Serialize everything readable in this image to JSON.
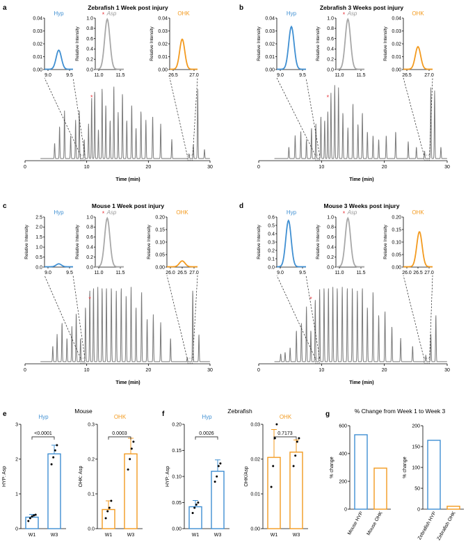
{
  "colors": {
    "hyp": "#3f8fd2",
    "asp": "#a8a8a8",
    "ohk": "#f39a1e",
    "star": "#e8343a",
    "trace": "#7a7a7a"
  },
  "panels": {
    "a": {
      "letter": "a",
      "title": "Zebrafish 1 Week post injury",
      "xlabel": "Time (min)"
    },
    "b": {
      "letter": "b",
      "title": "Zebrafish 3 Weeks  post injury",
      "xlabel": "Time (min)"
    },
    "c": {
      "letter": "c",
      "title": "Mouse 1 Week post injury",
      "xlabel": "Time (min)"
    },
    "d": {
      "letter": "d",
      "title": "Mouse 3 Weeks  post injury",
      "xlabel": "Time (min)"
    },
    "e": {
      "letter": "e",
      "title": "Mouse"
    },
    "f": {
      "letter": "f",
      "title": "Zebrafish"
    },
    "g": {
      "letter": "g",
      "title": "% Change from Week 1 to Week 3"
    }
  },
  "chart_data": [
    {
      "panel": "a",
      "type": "line",
      "xlabel": "Time (min)",
      "xlim": [
        0,
        30
      ],
      "xticks": [
        0,
        10,
        20,
        30
      ],
      "peaks": [
        [
          4.8,
          0.2
        ],
        [
          5.6,
          0.42
        ],
        [
          6.4,
          0.62
        ],
        [
          7.4,
          0.3
        ],
        [
          8.2,
          0.5
        ],
        [
          8.8,
          0.62
        ],
        [
          9.6,
          0.25
        ],
        [
          10.3,
          0.45
        ],
        [
          10.8,
          0.8
        ],
        [
          11.3,
          0.88
        ],
        [
          11.9,
          0.38
        ],
        [
          12.5,
          0.92
        ],
        [
          13.1,
          0.7
        ],
        [
          13.8,
          0.5
        ],
        [
          14.4,
          0.95
        ],
        [
          15.1,
          0.6
        ],
        [
          15.8,
          0.85
        ],
        [
          16.5,
          0.5
        ],
        [
          17.3,
          0.7
        ],
        [
          18.0,
          0.4
        ],
        [
          18.8,
          0.62
        ],
        [
          19.6,
          0.5
        ],
        [
          20.7,
          0.55
        ],
        [
          22.0,
          0.45
        ],
        [
          23.8,
          0.25
        ],
        [
          26.6,
          0.06
        ],
        [
          27.3,
          0.18
        ],
        [
          28.0,
          0.9
        ],
        [
          29.1,
          0.12
        ]
      ],
      "star_rt": 10.8,
      "insets": [
        {
          "label": "Hyp",
          "xticks": [
            "9.0",
            "9.5"
          ],
          "yticks": [
            "0.00",
            "0.01",
            "0.02",
            "0.03",
            "0.04"
          ],
          "ylabel": "",
          "peak_x": 0.5,
          "peak_h": 0.38
        },
        {
          "label": "Asp",
          "star": "*",
          "xticks": [
            "11.0",
            "11.5"
          ],
          "yticks": [
            "0.0",
            "0.2",
            "0.4",
            "0.6",
            "0.8",
            "1.0"
          ],
          "ylabel": "Relative Intensity",
          "peak_x": 0.42,
          "peak_h": 1.0
        },
        {
          "label": "OHK",
          "xticks": [
            "26.5",
            "27.0"
          ],
          "yticks": [
            "0.00",
            "0.01",
            "0.02",
            "0.03",
            "0.04"
          ],
          "ylabel": "Relative Intensity",
          "peak_x": 0.45,
          "peak_h": 0.6
        }
      ]
    },
    {
      "panel": "b",
      "type": "line",
      "xlabel": "Time (min)",
      "xlim": [
        0,
        30
      ],
      "xticks": [
        0,
        10,
        20,
        30
      ],
      "peaks": [
        [
          4.8,
          0.15
        ],
        [
          5.8,
          0.3
        ],
        [
          6.7,
          0.35
        ],
        [
          7.6,
          0.25
        ],
        [
          8.4,
          0.4
        ],
        [
          9.1,
          0.45
        ],
        [
          9.9,
          0.55
        ],
        [
          10.5,
          0.5
        ],
        [
          11.0,
          0.62
        ],
        [
          11.5,
          0.85
        ],
        [
          12.1,
          0.95
        ],
        [
          12.7,
          0.92
        ],
        [
          13.4,
          0.6
        ],
        [
          14.2,
          0.4
        ],
        [
          15.0,
          0.72
        ],
        [
          15.8,
          0.45
        ],
        [
          16.5,
          0.6
        ],
        [
          17.3,
          0.35
        ],
        [
          18.2,
          0.3
        ],
        [
          19.1,
          0.25
        ],
        [
          20.3,
          0.3
        ],
        [
          21.8,
          0.35
        ],
        [
          23.8,
          0.22
        ],
        [
          25.1,
          0.15
        ],
        [
          26.4,
          0.1
        ],
        [
          27.4,
          0.92
        ],
        [
          28.0,
          0.88
        ],
        [
          29.0,
          0.15
        ]
      ],
      "star_rt": 11.0,
      "insets": [
        {
          "label": "Hyp",
          "xticks": [
            "9.0",
            "9.5"
          ],
          "yticks": [
            "0.00",
            "0.01",
            "0.02",
            "0.03",
            "0.04"
          ],
          "ylabel": "Relative Intensity",
          "peak_x": 0.5,
          "peak_h": 0.85
        },
        {
          "label": "Asp",
          "star": "*",
          "xticks": [
            "11.0",
            "11.5"
          ],
          "yticks": [
            "0.0",
            "0.2",
            "0.4",
            "0.6",
            "0.8",
            "1.0"
          ],
          "ylabel": "Relative Intensity",
          "peak_x": 0.42,
          "peak_h": 1.0
        },
        {
          "label": "OHK",
          "xticks": [
            "26.5",
            "27.0"
          ],
          "yticks": [
            "0.00",
            "0.01",
            "0.02",
            "0.03",
            "0.04"
          ],
          "ylabel": "Relative Intensity",
          "peak_x": 0.5,
          "peak_h": 0.45
        }
      ]
    },
    {
      "panel": "c",
      "type": "line",
      "xlabel": "Time (min)",
      "xlim": [
        0,
        30
      ],
      "xticks": [
        0,
        10,
        20,
        30
      ],
      "peaks": [
        [
          4.5,
          0.2
        ],
        [
          5.2,
          0.35
        ],
        [
          6.0,
          0.5
        ],
        [
          6.8,
          0.3
        ],
        [
          7.6,
          0.45
        ],
        [
          8.3,
          0.62
        ],
        [
          9.0,
          0.3
        ],
        [
          9.8,
          0.7
        ],
        [
          10.5,
          0.92
        ],
        [
          11.1,
          0.95
        ],
        [
          11.8,
          0.95
        ],
        [
          12.5,
          0.95
        ],
        [
          13.2,
          0.95
        ],
        [
          14.0,
          0.95
        ],
        [
          14.8,
          0.9
        ],
        [
          15.6,
          0.95
        ],
        [
          16.4,
          0.85
        ],
        [
          17.2,
          0.95
        ],
        [
          18.0,
          0.7
        ],
        [
          18.9,
          0.9
        ],
        [
          19.8,
          0.55
        ],
        [
          20.8,
          0.6
        ],
        [
          22.0,
          0.5
        ],
        [
          23.6,
          0.3
        ],
        [
          26.3,
          0.05
        ],
        [
          27.2,
          0.92
        ],
        [
          28.2,
          0.35
        ]
      ],
      "star_rt": 10.5,
      "insets": [
        {
          "label": "Hyp",
          "xticks": [
            "9.0",
            "9.5"
          ],
          "yticks": [
            "0.0",
            "0.5",
            "1.0",
            "1.5",
            "2.0",
            "2.5"
          ],
          "ylabel": "Relative Intensity",
          "peak_x": 0.5,
          "peak_h": 0.06
        },
        {
          "label": "Asp",
          "star": "*",
          "xticks": [
            "11.0",
            "11.5"
          ],
          "yticks": [
            "0.0",
            "0.2",
            "0.4",
            "0.6",
            "0.8",
            "1.0"
          ],
          "ylabel": "Relative Intensity",
          "peak_x": 0.42,
          "peak_h": 1.0
        },
        {
          "label": "OHK",
          "xticks": [
            "26.0",
            "26.5",
            "27.0"
          ],
          "yticks": [
            "0.00",
            "0.05",
            "0.10",
            "0.15",
            "0.20"
          ],
          "ylabel": "Relative Intensity",
          "peak_x": 0.5,
          "peak_h": 0.12
        }
      ]
    },
    {
      "panel": "d",
      "type": "line",
      "xlabel": "Time (min)",
      "xlim": [
        0,
        30
      ],
      "xticks": [
        0,
        10,
        20,
        30
      ],
      "peaks": [
        [
          3.5,
          0.1
        ],
        [
          4.2,
          0.12
        ],
        [
          5.0,
          0.18
        ],
        [
          6.0,
          0.4
        ],
        [
          6.8,
          0.5
        ],
        [
          7.6,
          0.7
        ],
        [
          8.3,
          0.4
        ],
        [
          9.0,
          0.8
        ],
        [
          9.7,
          0.92
        ],
        [
          10.4,
          0.95
        ],
        [
          11.1,
          0.95
        ],
        [
          11.8,
          0.95
        ],
        [
          12.5,
          0.95
        ],
        [
          13.3,
          0.95
        ],
        [
          14.1,
          0.95
        ],
        [
          14.9,
          0.95
        ],
        [
          15.7,
          0.9
        ],
        [
          16.5,
          0.95
        ],
        [
          17.3,
          0.7
        ],
        [
          18.2,
          0.9
        ],
        [
          19.1,
          0.6
        ],
        [
          20.1,
          0.65
        ],
        [
          21.2,
          0.45
        ],
        [
          22.6,
          0.3
        ],
        [
          24.5,
          0.2
        ],
        [
          26.6,
          0.08
        ],
        [
          27.4,
          0.35
        ],
        [
          28.2,
          0.6
        ]
      ],
      "star_rt": 8.3,
      "insets": [
        {
          "label": "Hyp",
          "xticks": [
            "9.0",
            "9.5"
          ],
          "yticks": [
            "0.0",
            "0.1",
            "0.2",
            "0.3",
            "0.4",
            "0.5",
            "0.6"
          ],
          "ylabel": "Relative Intensity",
          "peak_x": 0.4,
          "peak_h": 0.95
        },
        {
          "label": "Asp",
          "star": "*",
          "xticks": [
            "11.0",
            "11.5"
          ],
          "yticks": [
            "0.0",
            "0.2",
            "0.4",
            "0.6",
            "0.8",
            "1.0"
          ],
          "ylabel": "Relative Intensity",
          "peak_x": 0.42,
          "peak_h": 1.0
        },
        {
          "label": "OHK",
          "xticks": [
            "26.0",
            "26.5",
            "27.0"
          ],
          "yticks": [
            "0.00",
            "0.05",
            "0.10",
            "0.15",
            "0.20"
          ],
          "ylabel": "Relative Intensity",
          "peak_x": 0.55,
          "peak_h": 0.72
        }
      ]
    },
    {
      "panel": "e-hyp",
      "type": "bar",
      "title": "Hyp",
      "ylabel": "HYP: Asp",
      "categories": [
        "W1",
        "W3"
      ],
      "values": [
        0.33,
        2.15
      ],
      "errors": [
        0.08,
        0.25
      ],
      "points": [
        [
          0.22,
          0.3,
          0.35,
          0.38,
          0.4
        ],
        [
          1.85,
          2.05,
          2.25,
          2.4
        ]
      ],
      "ylim": [
        0,
        3
      ],
      "yticks": [
        "0",
        "1",
        "2",
        "3"
      ],
      "pvalue": "<0.0001"
    },
    {
      "panel": "e-ohk",
      "type": "bar",
      "title": "OHK",
      "ylabel": "OHK: Asp",
      "categories": [
        "W1",
        "W3"
      ],
      "values": [
        0.055,
        0.215
      ],
      "errors": [
        0.025,
        0.045
      ],
      "points": [
        [
          0.03,
          0.05,
          0.06,
          0.08
        ],
        [
          0.17,
          0.2,
          0.23,
          0.25
        ]
      ],
      "ylim": [
        0,
        0.3
      ],
      "yticks": [
        "0.0",
        "0.1",
        "0.2",
        "0.3"
      ],
      "pvalue": "0.0003"
    },
    {
      "panel": "f-hyp",
      "type": "bar",
      "title": "Hyp",
      "ylabel": "HYP: Asp",
      "categories": [
        "W1",
        "W3"
      ],
      "values": [
        0.042,
        0.11
      ],
      "errors": [
        0.012,
        0.022
      ],
      "points": [
        [
          0.03,
          0.04,
          0.046,
          0.05
        ],
        [
          0.09,
          0.1,
          0.12,
          0.125
        ]
      ],
      "ylim": [
        0,
        0.2
      ],
      "yticks": [
        "0.00",
        "0.05",
        "0.10",
        "0.15",
        "0.20"
      ],
      "pvalue": "0.0026"
    },
    {
      "panel": "f-ohk",
      "type": "bar",
      "title": "OHK",
      "ylabel": "OHK/Asp",
      "categories": [
        "W1",
        "W3"
      ],
      "values": [
        0.0205,
        0.022
      ],
      "errors": [
        0.008,
        0.0035
      ],
      "points": [
        [
          0.012,
          0.018,
          0.026,
          0.03
        ],
        [
          0.018,
          0.021,
          0.025,
          0.026
        ]
      ],
      "ylim": [
        0,
        0.03
      ],
      "yticks": [
        "0.00",
        "0.01",
        "0.02",
        "0.03"
      ],
      "pvalue": "0.7173"
    },
    {
      "panel": "g-mouse",
      "type": "bar",
      "ylabel": "% change",
      "categories": [
        "Mouse HYP",
        "Mouse OHK"
      ],
      "values": [
        535,
        295
      ],
      "ylim": [
        0,
        600
      ],
      "yticks": [
        "0",
        "200",
        "400",
        "600"
      ]
    },
    {
      "panel": "g-zebrafish",
      "type": "bar",
      "ylabel": "% change",
      "categories": [
        "Zebrafish HYP",
        "Zebrafish OHK"
      ],
      "values": [
        165,
        7
      ],
      "ylim": [
        0,
        200
      ],
      "yticks": [
        "0",
        "50",
        "100",
        "150",
        "200"
      ]
    }
  ]
}
